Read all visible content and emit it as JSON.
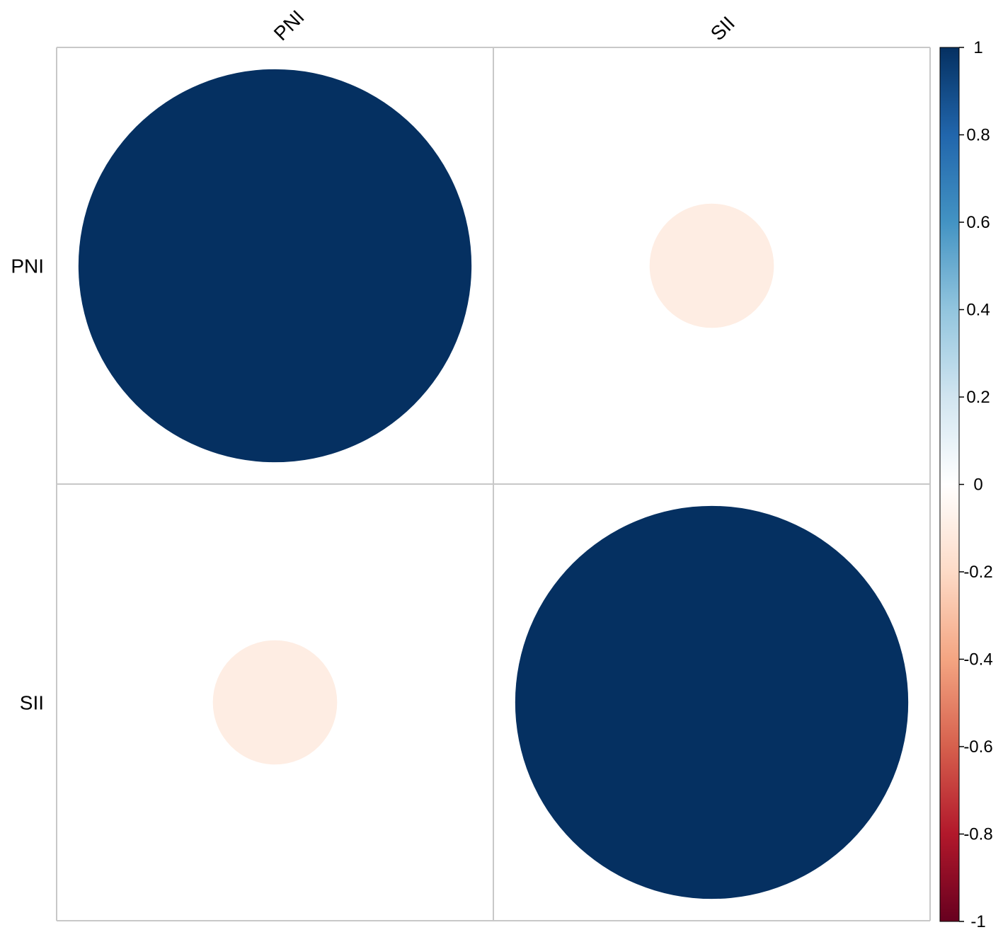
{
  "chart_data": {
    "type": "heatmap",
    "method": "circle",
    "variables": [
      "PNI",
      "SII"
    ],
    "matrix": [
      [
        1.0,
        -0.1
      ],
      [
        -0.1,
        1.0
      ]
    ],
    "colorbar": {
      "range": [
        -1,
        1
      ],
      "ticks": [
        "1",
        "0.8",
        "0.6",
        "0.4",
        "0.2",
        "0",
        "-0.2",
        "-0.4",
        "-0.6",
        "-0.8",
        "-1"
      ],
      "colors": [
        "#67001F",
        "#B2182B",
        "#D6604D",
        "#F4A582",
        "#FDDBC7",
        "#FFFFFF",
        "#D1E5F0",
        "#92C5DE",
        "#4393C3",
        "#2166AC",
        "#053061"
      ]
    },
    "grid": true,
    "legend_position": "right"
  }
}
